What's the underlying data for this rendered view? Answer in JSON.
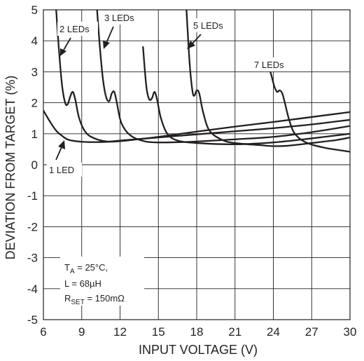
{
  "chart_data": {
    "type": "line",
    "title": "",
    "xlabel": "INPUT VOLTAGE (V)",
    "ylabel": "DEVIATION FROM TARGET (%)",
    "xlim": [
      6,
      30
    ],
    "ylim": [
      -5,
      5
    ],
    "xticks": [
      6,
      9,
      12,
      15,
      18,
      21,
      24,
      27,
      30
    ],
    "yticks": [
      5,
      4,
      3,
      2,
      1,
      0,
      -1,
      -2,
      -3,
      -4,
      -5
    ],
    "grid": true,
    "legend": "none",
    "colors": {
      "curve": "#231f20",
      "grid": "#231f20",
      "background": "#ffffff"
    },
    "series": [
      {
        "name": "1 LED",
        "x": [
          6.0,
          6.5,
          7.0,
          7.5,
          8.0,
          9.0,
          10.0,
          11.0,
          12.0,
          15.0,
          18.0,
          21.0,
          24.0,
          27.0,
          30.0
        ],
        "y": [
          1.75,
          1.4,
          1.1,
          0.92,
          0.8,
          0.74,
          0.73,
          0.74,
          0.76,
          0.9,
          1.07,
          1.23,
          1.38,
          1.54,
          1.7
        ]
      },
      {
        "name": "2 LEDs",
        "x": [
          7.0,
          7.2,
          7.45,
          7.7,
          7.9,
          8.1,
          8.3,
          8.5,
          8.8,
          9.3,
          10.0,
          11.0,
          12.0,
          15.0,
          18.0,
          21.0,
          24.0,
          27.0,
          30.0
        ],
        "y": [
          5.0,
          3.8,
          2.6,
          2.0,
          1.95,
          2.2,
          2.35,
          2.1,
          1.5,
          1.05,
          0.85,
          0.75,
          0.78,
          0.88,
          0.98,
          1.08,
          1.18,
          1.3,
          1.45
        ]
      },
      {
        "name": "3 LEDs",
        "x": [
          10.2,
          10.4,
          10.65,
          10.9,
          11.15,
          11.35,
          11.55,
          11.75,
          12.1,
          12.8,
          14.0,
          15.5,
          18.0,
          21.0,
          24.0,
          27.0,
          30.0
        ],
        "y": [
          5.0,
          3.9,
          2.8,
          2.2,
          2.05,
          2.3,
          2.35,
          2.0,
          1.35,
          0.95,
          0.75,
          0.72,
          0.75,
          0.82,
          0.9,
          1.05,
          1.25
        ]
      },
      {
        "name": "",
        "x": [
          13.8,
          13.95,
          14.1,
          14.3,
          14.5,
          14.7,
          14.9,
          15.2,
          15.7,
          16.5,
          18.0,
          21.0,
          24.0,
          27.0,
          30.0
        ],
        "y": [
          3.8,
          3.0,
          2.4,
          2.1,
          2.15,
          2.35,
          2.1,
          1.5,
          1.0,
          0.78,
          0.7,
          0.66,
          0.72,
          0.85,
          1.0
        ]
      },
      {
        "name": "5 LEDs",
        "x": [
          17.2,
          17.35,
          17.5,
          17.7,
          17.85,
          18.0,
          18.2,
          18.5,
          19.0,
          20.0,
          21.0,
          23.0,
          24.0,
          25.0,
          26.0,
          27.0,
          28.0,
          29.0,
          30.0
        ],
        "y": [
          5.0,
          3.9,
          3.0,
          2.3,
          2.25,
          2.4,
          2.3,
          1.7,
          1.1,
          0.8,
          0.7,
          0.63,
          0.6,
          0.61,
          0.65,
          0.7,
          0.75,
          0.8,
          0.88
        ]
      },
      {
        "name": "7 LEDs",
        "x": [
          23.7,
          23.9,
          24.1,
          24.3,
          24.5,
          24.7,
          24.9,
          25.2,
          25.6,
          26.2,
          27.0,
          28.0,
          29.0,
          30.0
        ],
        "y": [
          3.1,
          2.8,
          2.5,
          2.35,
          2.4,
          2.3,
          2.0,
          1.5,
          1.05,
          0.8,
          0.65,
          0.55,
          0.48,
          0.42
        ]
      }
    ],
    "annotations": {
      "curve_labels": [
        {
          "text": "2 LEDs"
        },
        {
          "text": "3 LEDs"
        },
        {
          "text": "5 LEDs"
        },
        {
          "text": "7 LEDs"
        },
        {
          "text": "1 LED"
        }
      ],
      "conditions": [
        {
          "main": "T",
          "sub": "A",
          "rest": " = 25°C,"
        },
        {
          "main": "L = 68µH",
          "sub": "",
          "rest": ""
        },
        {
          "main": "R",
          "sub": "SET",
          "rest": " = 150mΩ"
        }
      ]
    }
  }
}
